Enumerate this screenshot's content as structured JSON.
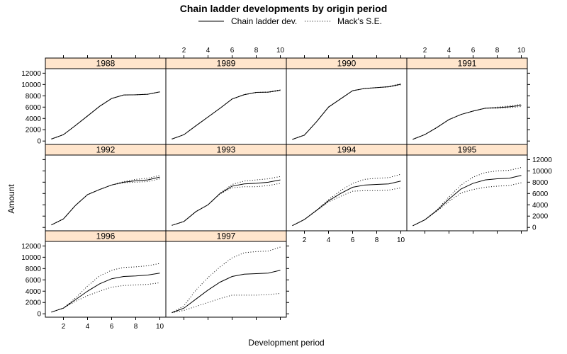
{
  "chart_data": {
    "type": "line",
    "title": "Chain ladder developments by origin period",
    "xlabel": "Development period",
    "ylabel": "Amount",
    "legend": {
      "placement": "top",
      "entries": [
        {
          "label": "Chain ladder dev.",
          "style": "solid"
        },
        {
          "label": "Mack's S.E.",
          "style": "dotted"
        }
      ]
    },
    "xlim": [
      0.5,
      10.5
    ],
    "ylim": [
      -600,
      12800
    ],
    "x_ticks": [
      2,
      4,
      6,
      8,
      10
    ],
    "y_ticks": [
      0,
      2000,
      4000,
      6000,
      8000,
      10000,
      12000
    ],
    "layout": {
      "columns": 4,
      "rows": 3
    },
    "colors": {
      "strip": "#ffe5cc",
      "line": "#000000",
      "frame": "#000000"
    },
    "x": [
      1,
      2,
      3,
      4,
      5,
      6,
      7,
      8,
      9,
      10
    ],
    "panels": [
      {
        "origin": "1988",
        "dev": [
          357,
          1125,
          2752,
          4434,
          6137,
          7523,
          8149,
          8178,
          8281,
          8692
        ],
        "upper": [
          357,
          1125,
          2752,
          4434,
          6137,
          7523,
          8149,
          8178,
          8281,
          8692
        ],
        "lower": [
          357,
          1125,
          2752,
          4434,
          6137,
          7523,
          8149,
          8178,
          8281,
          8692
        ]
      },
      {
        "origin": "1989",
        "dev": [
          352,
          1124,
          2711,
          4251,
          5800,
          7438,
          8200,
          8600,
          8650,
          9000
        ],
        "upper": [
          352,
          1124,
          2711,
          4251,
          5800,
          7438,
          8200,
          8600,
          8680,
          9060
        ],
        "lower": [
          352,
          1124,
          2711,
          4251,
          5800,
          7438,
          8200,
          8600,
          8620,
          8940
        ]
      },
      {
        "origin": "1990",
        "dev": [
          290,
          1050,
          3400,
          6000,
          7450,
          8900,
          9300,
          9450,
          9600,
          10050
        ],
        "upper": [
          290,
          1050,
          3400,
          6000,
          7450,
          8900,
          9300,
          9450,
          9650,
          10150
        ],
        "lower": [
          290,
          1050,
          3400,
          6000,
          7450,
          8900,
          9300,
          9450,
          9550,
          9950
        ]
      },
      {
        "origin": "1991",
        "dev": [
          310,
          1150,
          2400,
          3800,
          4700,
          5300,
          5800,
          5900,
          6050,
          6300
        ],
        "upper": [
          310,
          1150,
          2400,
          3800,
          4700,
          5300,
          5800,
          6000,
          6200,
          6500
        ],
        "lower": [
          310,
          1150,
          2400,
          3800,
          4700,
          5300,
          5800,
          5800,
          5900,
          6100
        ]
      },
      {
        "origin": "1992",
        "dev": [
          440,
          1500,
          3900,
          5800,
          6700,
          7500,
          8000,
          8250,
          8400,
          8900
        ],
        "upper": [
          440,
          1500,
          3900,
          5800,
          6700,
          7500,
          8100,
          8500,
          8700,
          9200
        ],
        "lower": [
          440,
          1500,
          3900,
          5800,
          6700,
          7500,
          7900,
          8000,
          8100,
          8600
        ]
      },
      {
        "origin": "1993",
        "dev": [
          360,
          1050,
          2800,
          4000,
          6000,
          7300,
          7700,
          7800,
          8000,
          8400
        ],
        "upper": [
          360,
          1050,
          2800,
          4000,
          6050,
          7600,
          8200,
          8400,
          8600,
          9000
        ],
        "lower": [
          360,
          1050,
          2800,
          4000,
          5950,
          7000,
          7200,
          7200,
          7400,
          7800
        ]
      },
      {
        "origin": "1994",
        "dev": [
          320,
          1400,
          3000,
          4700,
          6000,
          7100,
          7500,
          7600,
          7700,
          8200
        ],
        "upper": [
          320,
          1400,
          3050,
          4900,
          6500,
          7800,
          8500,
          8700,
          8800,
          9400
        ],
        "lower": [
          320,
          1400,
          2950,
          4500,
          5500,
          6400,
          6500,
          6500,
          6600,
          7000
        ]
      },
      {
        "origin": "1995",
        "dev": [
          300,
          1350,
          3000,
          5000,
          6800,
          7800,
          8400,
          8600,
          8700,
          9200
        ],
        "upper": [
          300,
          1350,
          3100,
          5400,
          7500,
          8900,
          9700,
          10000,
          10100,
          10600
        ],
        "lower": [
          300,
          1350,
          2900,
          4600,
          6100,
          6700,
          7100,
          7300,
          7400,
          7900
        ]
      },
      {
        "origin": "1996",
        "dev": [
          300,
          1000,
          2500,
          4000,
          5300,
          6200,
          6600,
          6700,
          6850,
          7200
        ],
        "upper": [
          300,
          1000,
          2800,
          4900,
          6700,
          7700,
          8200,
          8300,
          8500,
          8900
        ],
        "lower": [
          300,
          1000,
          2200,
          3200,
          4000,
          4700,
          5000,
          5100,
          5200,
          5500
        ]
      },
      {
        "origin": "1997",
        "dev": [
          200,
          1000,
          2600,
          4200,
          5600,
          6600,
          7000,
          7100,
          7200,
          7700
        ],
        "upper": [
          200,
          1400,
          4200,
          6400,
          8300,
          9900,
          10800,
          11000,
          11100,
          11800
        ],
        "lower": [
          200,
          600,
          1300,
          2000,
          2700,
          3300,
          3300,
          3300,
          3400,
          3600
        ]
      }
    ]
  }
}
